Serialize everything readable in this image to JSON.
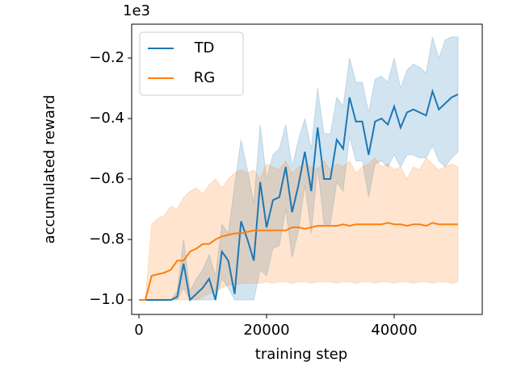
{
  "chart_data": {
    "type": "line",
    "x_label": "training step",
    "y_label": "accumulated reward",
    "y_offset_label": "1e3",
    "x": [
      0,
      1000,
      2000,
      3000,
      4000,
      5000,
      6000,
      7000,
      8000,
      9000,
      10000,
      11000,
      12000,
      13000,
      14000,
      15000,
      16000,
      17000,
      18000,
      19000,
      20000,
      21000,
      22000,
      23000,
      24000,
      25000,
      26000,
      27000,
      28000,
      29000,
      30000,
      31000,
      32000,
      33000,
      34000,
      35000,
      36000,
      37000,
      38000,
      39000,
      40000,
      41000,
      42000,
      43000,
      44000,
      45000,
      46000,
      47000,
      48000,
      49000,
      50000
    ],
    "series": [
      {
        "name": "TD",
        "color": "#1f77b4",
        "values": [
          -1.0,
          -1.0,
          -1.0,
          -1.0,
          -1.0,
          -1.0,
          -0.99,
          -0.88,
          -1.0,
          -0.98,
          -0.96,
          -0.93,
          -1.0,
          -0.84,
          -0.87,
          -0.98,
          -0.74,
          -0.8,
          -0.87,
          -0.61,
          -0.76,
          -0.67,
          -0.66,
          -0.56,
          -0.71,
          -0.62,
          -0.51,
          -0.64,
          -0.43,
          -0.6,
          -0.6,
          -0.47,
          -0.5,
          -0.33,
          -0.41,
          -0.41,
          -0.52,
          -0.41,
          -0.4,
          -0.42,
          -0.36,
          -0.43,
          -0.38,
          -0.37,
          -0.38,
          -0.39,
          -0.31,
          -0.37,
          -0.35,
          -0.33,
          -0.32
        ],
        "upper": [
          -1.0,
          -1.0,
          -1.0,
          -1.0,
          -1.0,
          -1.0,
          -0.97,
          -0.8,
          -0.97,
          -0.93,
          -0.9,
          -0.85,
          -0.92,
          -0.75,
          -0.78,
          -0.62,
          -0.47,
          -0.57,
          -0.68,
          -0.42,
          -0.6,
          -0.52,
          -0.5,
          -0.42,
          -0.56,
          -0.47,
          -0.4,
          -0.5,
          -0.3,
          -0.45,
          -0.45,
          -0.33,
          -0.36,
          -0.2,
          -0.28,
          -0.28,
          -0.38,
          -0.27,
          -0.26,
          -0.28,
          -0.2,
          -0.3,
          -0.24,
          -0.22,
          -0.23,
          -0.25,
          -0.13,
          -0.2,
          -0.14,
          -0.13,
          -0.13
        ],
        "lower": [
          -1.0,
          -1.0,
          -1.0,
          -1.0,
          -1.0,
          -1.0,
          -1.0,
          -0.96,
          -1.0,
          -1.0,
          -1.0,
          -1.0,
          -1.0,
          -0.93,
          -0.96,
          -1.0,
          -1.0,
          -1.0,
          -1.0,
          -0.9,
          -0.92,
          -0.83,
          -0.82,
          -0.7,
          -0.86,
          -0.77,
          -0.62,
          -0.78,
          -0.56,
          -0.75,
          -0.75,
          -0.61,
          -0.64,
          -0.46,
          -0.54,
          -0.54,
          -0.66,
          -0.55,
          -0.54,
          -0.56,
          -0.52,
          -0.56,
          -0.52,
          -0.52,
          -0.53,
          -0.53,
          -0.49,
          -0.54,
          -0.56,
          -0.53,
          -0.51
        ]
      },
      {
        "name": "RG",
        "color": "#ff7f0e",
        "values": [
          -1.0,
          -1.0,
          -0.92,
          -0.915,
          -0.91,
          -0.9,
          -0.87,
          -0.87,
          -0.84,
          -0.83,
          -0.815,
          -0.815,
          -0.8,
          -0.79,
          -0.785,
          -0.78,
          -0.78,
          -0.775,
          -0.77,
          -0.77,
          -0.77,
          -0.77,
          -0.77,
          -0.77,
          -0.76,
          -0.76,
          -0.765,
          -0.76,
          -0.755,
          -0.755,
          -0.755,
          -0.755,
          -0.75,
          -0.755,
          -0.75,
          -0.75,
          -0.75,
          -0.75,
          -0.75,
          -0.745,
          -0.75,
          -0.75,
          -0.755,
          -0.75,
          -0.75,
          -0.755,
          -0.745,
          -0.75,
          -0.75,
          -0.75,
          -0.75
        ],
        "upper": [
          -1.0,
          -1.0,
          -0.75,
          -0.73,
          -0.72,
          -0.69,
          -0.7,
          -0.66,
          -0.64,
          -0.63,
          -0.65,
          -0.62,
          -0.6,
          -0.63,
          -0.6,
          -0.58,
          -0.57,
          -0.58,
          -0.57,
          -0.6,
          -0.55,
          -0.56,
          -0.57,
          -0.54,
          -0.58,
          -0.56,
          -0.55,
          -0.56,
          -0.57,
          -0.54,
          -0.57,
          -0.55,
          -0.56,
          -0.54,
          -0.58,
          -0.56,
          -0.55,
          -0.53,
          -0.56,
          -0.55,
          -0.57,
          -0.56,
          -0.6,
          -0.56,
          -0.57,
          -0.53,
          -0.55,
          -0.57,
          -0.56,
          -0.55,
          -0.56
        ],
        "lower": [
          -1.0,
          -1.0,
          -1.0,
          -1.0,
          -1.0,
          -1.0,
          -1.0,
          -1.0,
          -1.0,
          -1.0,
          -0.99,
          -0.98,
          -0.97,
          -0.96,
          -0.95,
          -0.95,
          -0.945,
          -0.945,
          -0.945,
          -0.945,
          -0.94,
          -0.945,
          -0.94,
          -0.94,
          -0.945,
          -0.94,
          -0.94,
          -0.945,
          -0.94,
          -0.94,
          -0.94,
          -0.945,
          -0.94,
          -0.94,
          -0.945,
          -0.94,
          -0.94,
          -0.945,
          -0.94,
          -0.94,
          -0.945,
          -0.94,
          -0.94,
          -0.945,
          -0.94,
          -0.94,
          -0.945,
          -0.94,
          -0.94,
          -0.945,
          -0.94
        ]
      }
    ],
    "xlim": [
      -1140,
      53800
    ],
    "ylim": [
      -1.048,
      -0.088
    ],
    "xticks": [
      0,
      20000,
      40000
    ],
    "yticks": [
      {
        "value": -1.0,
        "label": "−1.0"
      },
      {
        "value": -0.8,
        "label": "−0.8"
      },
      {
        "value": -0.6,
        "label": "−0.6"
      },
      {
        "value": -0.4,
        "label": "−0.4"
      },
      {
        "value": -0.2,
        "label": "−0.2"
      }
    ],
    "band_opacity": 0.2,
    "legend": "upper left",
    "grid": false
  }
}
